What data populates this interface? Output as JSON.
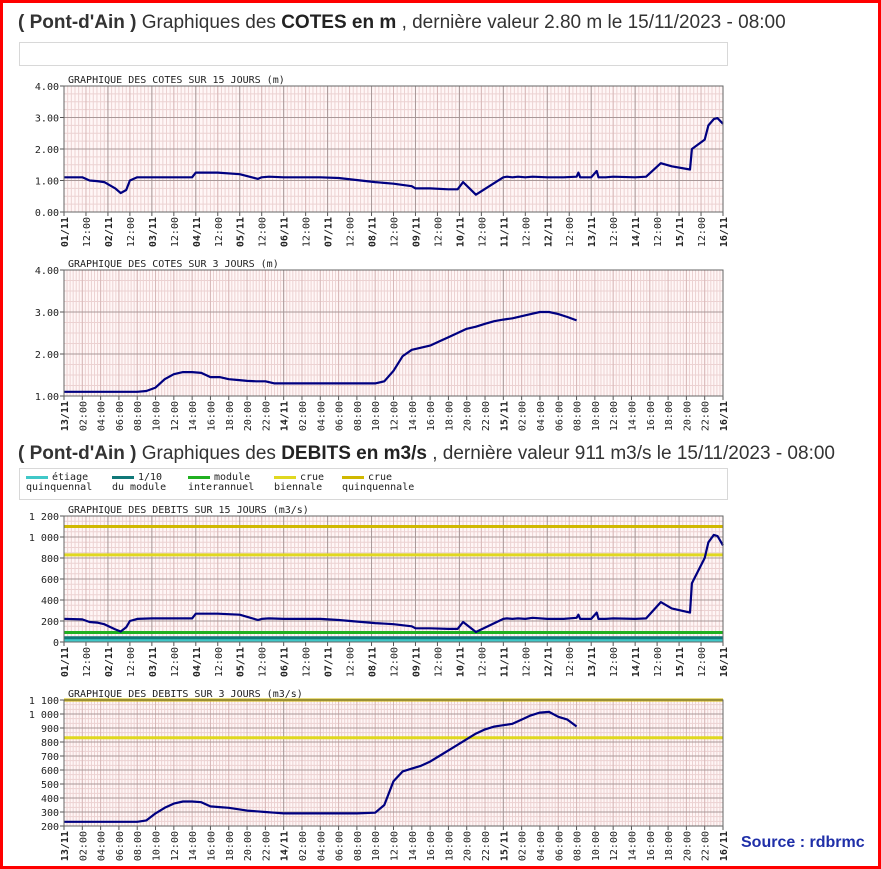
{
  "header_cotes": {
    "station": "( Pont-d'Ain )",
    "prefix": "Graphiques des",
    "measure": "COTES en m",
    "suffix": ", dernière valeur 2.80 m le 15/11/2023 - 08:00"
  },
  "header_debits": {
    "station": "( Pont-d'Ain )",
    "prefix": "Graphiques des",
    "measure": "DEBITS en m3/s",
    "suffix": ", dernière valeur 911 m3/s le 15/11/2023 - 08:00"
  },
  "legend": [
    {
      "line1": "étiage",
      "line2": "quinquennal",
      "color": "#40c8c8"
    },
    {
      "line1": "1/10",
      "line2": "du module",
      "color": "#107878"
    },
    {
      "line1": "module",
      "line2": "interannuel",
      "color": "#20b020"
    },
    {
      "line1": "crue",
      "line2": "biennale",
      "color": "#e0d820"
    },
    {
      "line1": "crue",
      "line2": "quinquennale",
      "color": "#d0b800"
    }
  ],
  "source": "Source : rdbrmc",
  "colors": {
    "frame": "#ff0000",
    "series": "#000080",
    "plot_bg": "#fff5f5",
    "grid": "#e8c8c8",
    "major_grid": "#b0a0a0"
  },
  "chart_data": [
    {
      "type": "line",
      "title": "GRAPHIQUE DES COTES SUR 15 JOURS (m)",
      "ylim": [
        0,
        4
      ],
      "yticks": [
        "0.00",
        "1.00",
        "2.00",
        "3.00",
        "4.00"
      ],
      "ytick_values": [
        0,
        1,
        2,
        3,
        4
      ],
      "x_range": [
        0,
        360
      ],
      "xticks": [
        "01/11",
        "12:00",
        "02/11",
        "12:00",
        "03/11",
        "12:00",
        "04/11",
        "12:00",
        "05/11",
        "12:00",
        "06/11",
        "12:00",
        "07/11",
        "12:00",
        "08/11",
        "12:00",
        "09/11",
        "12:00",
        "10/11",
        "12:00",
        "11/11",
        "12:00",
        "12/11",
        "12:00",
        "13/11",
        "12:00",
        "14/11",
        "12:00",
        "15/11",
        "12:00",
        "16/11"
      ],
      "series": [
        {
          "x": [
            0,
            10,
            14,
            18,
            22,
            28,
            31,
            34,
            36,
            40,
            48,
            70,
            72,
            84,
            96,
            106,
            108,
            112,
            120,
            130,
            140,
            150,
            170,
            180,
            190,
            192,
            200,
            210,
            215,
            218,
            225,
            240,
            242,
            245,
            248,
            252,
            256,
            264,
            273,
            280,
            281,
            282,
            288,
            291,
            292,
            296,
            300,
            312,
            318,
            326,
            332,
            342,
            343,
            350,
            352,
            355,
            357,
            360
          ],
          "y": [
            1.1,
            1.1,
            1.0,
            0.98,
            0.95,
            0.75,
            0.6,
            0.7,
            1.0,
            1.1,
            1.1,
            1.1,
            1.25,
            1.25,
            1.2,
            1.05,
            1.1,
            1.12,
            1.1,
            1.1,
            1.1,
            1.08,
            0.95,
            0.9,
            0.82,
            0.75,
            0.75,
            0.72,
            0.72,
            0.95,
            0.55,
            1.1,
            1.12,
            1.1,
            1.12,
            1.1,
            1.12,
            1.1,
            1.1,
            1.12,
            1.25,
            1.1,
            1.1,
            1.3,
            1.1,
            1.1,
            1.12,
            1.1,
            1.12,
            1.55,
            1.45,
            1.35,
            2.0,
            2.3,
            2.75,
            2.95,
            2.98,
            2.8
          ]
        }
      ]
    },
    {
      "type": "line",
      "title": "GRAPHIQUE DES COTES SUR 3 JOURS (m)",
      "ylim": [
        1,
        4
      ],
      "yticks": [
        "1.00",
        "2.00",
        "3.00",
        "4.00"
      ],
      "ytick_values": [
        1,
        2,
        3,
        4
      ],
      "x_range": [
        0,
        72
      ],
      "xticks": [
        "13/11",
        "02:00",
        "04:00",
        "06:00",
        "08:00",
        "10:00",
        "12:00",
        "14:00",
        "16:00",
        "18:00",
        "20:00",
        "22:00",
        "14/11",
        "02:00",
        "04:00",
        "06:00",
        "08:00",
        "10:00",
        "12:00",
        "14:00",
        "16:00",
        "18:00",
        "20:00",
        "22:00",
        "15/11",
        "02:00",
        "04:00",
        "06:00",
        "08:00",
        "10:00",
        "12:00",
        "14:00",
        "16:00",
        "18:00",
        "20:00",
        "22:00",
        "16/11"
      ],
      "series": [
        {
          "x": [
            0,
            4,
            8,
            9,
            10,
            11,
            12,
            13,
            14,
            15,
            16,
            17,
            18,
            19,
            20,
            21,
            22,
            23,
            24,
            26,
            28,
            30,
            32,
            34,
            35,
            36,
            37,
            38,
            39,
            40,
            41,
            42,
            43,
            44,
            45,
            46,
            47,
            48,
            49,
            50,
            51,
            52,
            53,
            54,
            55,
            56
          ],
          "y": [
            1.1,
            1.1,
            1.1,
            1.12,
            1.2,
            1.4,
            1.52,
            1.57,
            1.57,
            1.55,
            1.45,
            1.45,
            1.4,
            1.38,
            1.36,
            1.35,
            1.35,
            1.3,
            1.3,
            1.3,
            1.3,
            1.3,
            1.3,
            1.3,
            1.35,
            1.6,
            1.95,
            2.1,
            2.15,
            2.2,
            2.3,
            2.4,
            2.5,
            2.6,
            2.65,
            2.72,
            2.78,
            2.82,
            2.85,
            2.9,
            2.95,
            3.0,
            3.0,
            2.95,
            2.88,
            2.8
          ]
        }
      ]
    },
    {
      "type": "line",
      "title": "GRAPHIQUE DES DEBITS SUR 15 JOURS (m3/s)",
      "ylim": [
        0,
        1200
      ],
      "yticks": [
        "0",
        "200",
        "400",
        "600",
        "800",
        "1 000",
        "1 200"
      ],
      "ytick_values": [
        0,
        200,
        400,
        600,
        800,
        1000,
        1200
      ],
      "x_range": [
        0,
        360
      ],
      "xticks": [
        "01/11",
        "12:00",
        "02/11",
        "12:00",
        "03/11",
        "12:00",
        "04/11",
        "12:00",
        "05/11",
        "12:00",
        "06/11",
        "12:00",
        "07/11",
        "12:00",
        "08/11",
        "12:00",
        "09/11",
        "12:00",
        "10/11",
        "12:00",
        "11/11",
        "12:00",
        "12/11",
        "12:00",
        "13/11",
        "12:00",
        "14/11",
        "12:00",
        "15/11",
        "12:00",
        "16/11"
      ],
      "reference_lines": [
        {
          "y": 18,
          "color": "#40c8c8"
        },
        {
          "y": 40,
          "color": "#107878"
        },
        {
          "y": 90,
          "color": "#20b020"
        },
        {
          "y": 830,
          "color": "#e0d820"
        },
        {
          "y": 1100,
          "color": "#d0b800"
        }
      ],
      "series": [
        {
          "x": [
            0,
            10,
            14,
            18,
            22,
            28,
            31,
            34,
            36,
            40,
            48,
            70,
            72,
            84,
            96,
            106,
            108,
            112,
            120,
            130,
            140,
            150,
            170,
            180,
            190,
            192,
            200,
            210,
            215,
            218,
            225,
            240,
            242,
            245,
            248,
            252,
            256,
            264,
            273,
            280,
            281,
            282,
            288,
            291,
            292,
            296,
            300,
            312,
            318,
            326,
            332,
            342,
            343,
            350,
            352,
            355,
            357,
            360
          ],
          "y": [
            220,
            215,
            190,
            185,
            170,
            120,
            100,
            140,
            200,
            220,
            225,
            225,
            270,
            270,
            260,
            210,
            220,
            225,
            220,
            220,
            220,
            210,
            180,
            170,
            150,
            130,
            130,
            125,
            125,
            190,
            95,
            220,
            225,
            220,
            225,
            220,
            230,
            220,
            220,
            230,
            260,
            220,
            220,
            280,
            220,
            220,
            225,
            220,
            225,
            380,
            320,
            280,
            560,
            800,
            950,
            1020,
            1010,
            920
          ]
        }
      ]
    },
    {
      "type": "line",
      "title": "GRAPHIQUE DES DEBITS SUR 3 JOURS (m3/s)",
      "ylim": [
        200,
        1100
      ],
      "yticks": [
        "200",
        "300",
        "400",
        "500",
        "600",
        "700",
        "800",
        "900",
        "1 000",
        "1 100"
      ],
      "ytick_values": [
        200,
        300,
        400,
        500,
        600,
        700,
        800,
        900,
        1000,
        1100
      ],
      "x_range": [
        0,
        72
      ],
      "xticks": [
        "13/11",
        "02:00",
        "04:00",
        "06:00",
        "08:00",
        "10:00",
        "12:00",
        "14:00",
        "16:00",
        "18:00",
        "20:00",
        "22:00",
        "14/11",
        "02:00",
        "04:00",
        "06:00",
        "08:00",
        "10:00",
        "12:00",
        "14:00",
        "16:00",
        "18:00",
        "20:00",
        "22:00",
        "15/11",
        "02:00",
        "04:00",
        "06:00",
        "08:00",
        "10:00",
        "12:00",
        "14:00",
        "16:00",
        "18:00",
        "20:00",
        "22:00",
        "16/11"
      ],
      "reference_lines": [
        {
          "y": 830,
          "color": "#e0d820"
        },
        {
          "y": 1100,
          "color": "#d0b800"
        }
      ],
      "series": [
        {
          "x": [
            0,
            4,
            8,
            9,
            10,
            11,
            12,
            13,
            14,
            15,
            16,
            17,
            18,
            19,
            20,
            21,
            22,
            23,
            24,
            26,
            28,
            30,
            32,
            34,
            35,
            36,
            37,
            38,
            39,
            40,
            41,
            42,
            43,
            44,
            45,
            46,
            47,
            48,
            49,
            50,
            51,
            52,
            53,
            54,
            55,
            56
          ],
          "y": [
            230,
            230,
            230,
            240,
            290,
            330,
            360,
            375,
            375,
            370,
            340,
            335,
            330,
            320,
            310,
            305,
            300,
            295,
            290,
            290,
            290,
            290,
            290,
            295,
            350,
            520,
            590,
            610,
            630,
            660,
            700,
            740,
            780,
            820,
            860,
            890,
            910,
            920,
            930,
            960,
            990,
            1010,
            1015,
            980,
            960,
            911
          ]
        }
      ]
    }
  ]
}
